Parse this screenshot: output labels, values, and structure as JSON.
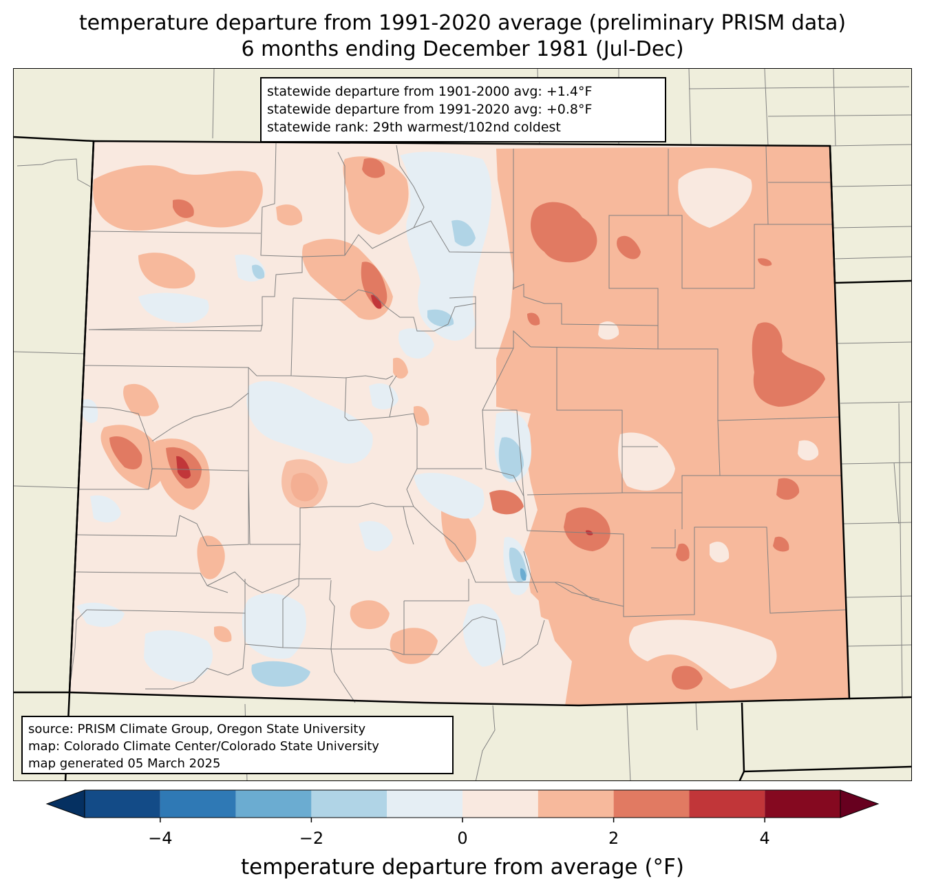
{
  "title": {
    "line1": "temperature departure from 1991-2020 average (preliminary PRISM data)",
    "line2": "6 months ending December 1981 (Jul-Dec)"
  },
  "stats_box": {
    "line1": "statewide departure from 1901-2000 avg: +1.4°F",
    "line2": "statewide departure from 1991-2020 avg: +0.8°F",
    "line3": "statewide rank: 29th warmest/102nd coldest"
  },
  "source_box": {
    "line1": "source: PRISM Climate Group, Oregon State University",
    "line2": "map: Colorado Climate Center/Colorado State University",
    "line3": "map generated 05 March 2025"
  },
  "colorbar": {
    "label": "temperature departure from average (°F)",
    "range": [
      -5,
      5
    ],
    "extend": "both",
    "levels": [
      -5,
      -4,
      -3,
      -2,
      -1,
      0,
      1,
      2,
      3,
      4,
      5
    ],
    "colors": [
      "#134b87",
      "#2f79b5",
      "#6bacd1",
      "#b0d4e6",
      "#e5eef4",
      "#f9e9e0",
      "#f7b99c",
      "#e17a62",
      "#c13639",
      "#850920"
    ],
    "under_color": "#053061",
    "over_color": "#67001f",
    "ticks": [
      -4,
      -2,
      0,
      2,
      4
    ],
    "tick_labels": [
      "−4",
      "−2",
      "0",
      "2",
      "4"
    ]
  },
  "map_colors": {
    "land_outside": "#efeedc",
    "county_line": "#808080",
    "state_line": "#000000"
  }
}
